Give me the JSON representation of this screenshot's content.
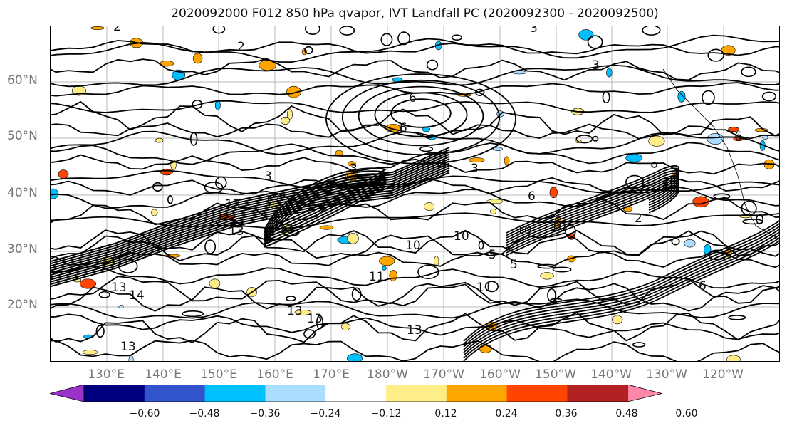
{
  "title": "2020092000 F012 850 hPa qvapor, IVT Landfall PC (2020092300 - 2020092500)",
  "map": {
    "lat_labels": [
      "60°N",
      "50°N",
      "40°N",
      "30°N",
      "20°N"
    ],
    "lon_labels": [
      "130°E",
      "140°E",
      "150°E",
      "160°E",
      "170°E",
      "180°W",
      "170°W",
      "160°W",
      "150°W",
      "140°W",
      "130°W",
      "120°W"
    ],
    "contour_labels": [
      "2",
      "2",
      "3",
      "3",
      "6",
      "6",
      "3",
      "3",
      "4",
      "3",
      "13",
      "13",
      "13",
      "13",
      "13",
      "13",
      "13",
      "14",
      "13",
      "13",
      "11",
      "11",
      "10",
      "10",
      "10",
      "10",
      "5",
      "5",
      "6",
      "2",
      "6",
      "6"
    ],
    "grid": true
  },
  "colorbar": {
    "colors": [
      "#9933cc",
      "#000080",
      "#3355cc",
      "#00bfff",
      "#aaddff",
      "#ffffff",
      "#ffee88",
      "#ffa500",
      "#ff4500",
      "#b22222",
      "#ff88aa"
    ],
    "ticks": [
      "−0.60",
      "−0.48",
      "−0.36",
      "−0.24",
      "−0.12",
      "0.12",
      "0.24",
      "0.36",
      "0.48",
      "0.60"
    ],
    "extend": "both"
  }
}
